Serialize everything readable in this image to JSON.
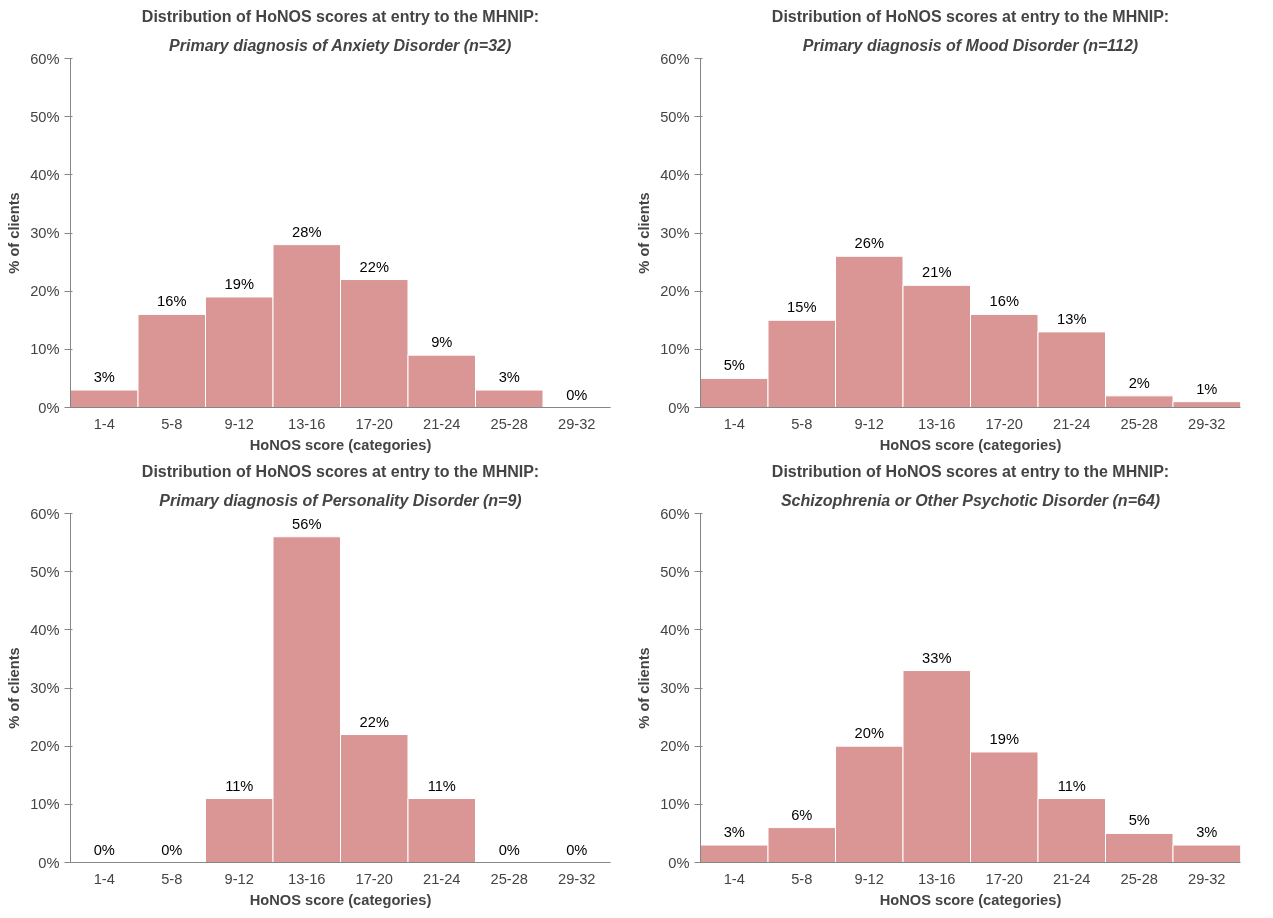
{
  "chart_data": [
    {
      "type": "bar",
      "title": "Distribution of HoNOS scores at entry to the MHNIP:",
      "subtitle": "Primary diagnosis of Anxiety Disorder (n=32)",
      "xlabel": "HoNOS score (categories)",
      "ylabel": "% of clients",
      "categories": [
        "1-4",
        "5-8",
        "9-12",
        "13-16",
        "17-20",
        "21-24",
        "25-28",
        "29-32"
      ],
      "values": [
        3,
        16,
        19,
        28,
        22,
        9,
        3,
        0
      ],
      "value_labels": [
        "3%",
        "16%",
        "19%",
        "28%",
        "22%",
        "9%",
        "3%",
        "0%"
      ],
      "color": "#d99694",
      "ylim": [
        0,
        60
      ],
      "yticks": [
        {
          "value": 0,
          "label": "0%"
        },
        {
          "value": 10,
          "label": "10%"
        },
        {
          "value": 20,
          "label": "20%"
        },
        {
          "value": 30,
          "label": "30%"
        },
        {
          "value": 40,
          "label": "40%"
        },
        {
          "value": 50,
          "label": "50%"
        },
        {
          "value": 60,
          "label": "60%"
        }
      ]
    },
    {
      "type": "bar",
      "title": "Distribution of HoNOS scores at entry to the MHNIP:",
      "subtitle": "Primary diagnosis of Mood Disorder (n=112)",
      "xlabel": "HoNOS score (categories)",
      "ylabel": "% of clients",
      "categories": [
        "1-4",
        "5-8",
        "9-12",
        "13-16",
        "17-20",
        "21-24",
        "25-28",
        "29-32"
      ],
      "values": [
        5,
        15,
        26,
        21,
        16,
        13,
        2,
        1
      ],
      "value_labels": [
        "5%",
        "15%",
        "26%",
        "21%",
        "16%",
        "13%",
        "2%",
        "1%"
      ],
      "color": "#d99694",
      "ylim": [
        0,
        60
      ],
      "yticks": [
        {
          "value": 0,
          "label": "0%"
        },
        {
          "value": 10,
          "label": "10%"
        },
        {
          "value": 20,
          "label": "20%"
        },
        {
          "value": 30,
          "label": "30%"
        },
        {
          "value": 40,
          "label": "40%"
        },
        {
          "value": 50,
          "label": "50%"
        },
        {
          "value": 60,
          "label": "60%"
        }
      ]
    },
    {
      "type": "bar",
      "title": "Distribution of HoNOS scores at entry to the MHNIP:",
      "subtitle": "Primary diagnosis of Personality Disorder (n=9)",
      "xlabel": "HoNOS score (categories)",
      "ylabel": "% of clients",
      "categories": [
        "1-4",
        "5-8",
        "9-12",
        "13-16",
        "17-20",
        "21-24",
        "25-28",
        "29-32"
      ],
      "values": [
        0,
        0,
        11,
        56,
        22,
        11,
        0,
        0
      ],
      "value_labels": [
        "0%",
        "0%",
        "11%",
        "56%",
        "22%",
        "11%",
        "0%",
        "0%"
      ],
      "color": "#d99694",
      "ylim": [
        0,
        60
      ],
      "yticks": [
        {
          "value": 0,
          "label": "0%"
        },
        {
          "value": 10,
          "label": "10%"
        },
        {
          "value": 20,
          "label": "20%"
        },
        {
          "value": 30,
          "label": "30%"
        },
        {
          "value": 40,
          "label": "40%"
        },
        {
          "value": 50,
          "label": "50%"
        },
        {
          "value": 60,
          "label": "60%"
        }
      ]
    },
    {
      "type": "bar",
      "title": "Distribution of HoNOS scores at entry to the MHNIP:",
      "subtitle": "Schizophrenia or Other Psychotic Disorder (n=64)",
      "xlabel": "HoNOS score (categories)",
      "ylabel": "% of clients",
      "categories": [
        "1-4",
        "5-8",
        "9-12",
        "13-16",
        "17-20",
        "21-24",
        "25-28",
        "29-32"
      ],
      "values": [
        3,
        6,
        20,
        33,
        19,
        11,
        5,
        3
      ],
      "value_labels": [
        "3%",
        "6%",
        "20%",
        "33%",
        "19%",
        "11%",
        "5%",
        "3%"
      ],
      "color": "#d99694",
      "ylim": [
        0,
        60
      ],
      "yticks": [
        {
          "value": 0,
          "label": "0%"
        },
        {
          "value": 10,
          "label": "10%"
        },
        {
          "value": 20,
          "label": "20%"
        },
        {
          "value": 30,
          "label": "30%"
        },
        {
          "value": 40,
          "label": "40%"
        },
        {
          "value": 50,
          "label": "50%"
        },
        {
          "value": 60,
          "label": "60%"
        }
      ]
    }
  ]
}
